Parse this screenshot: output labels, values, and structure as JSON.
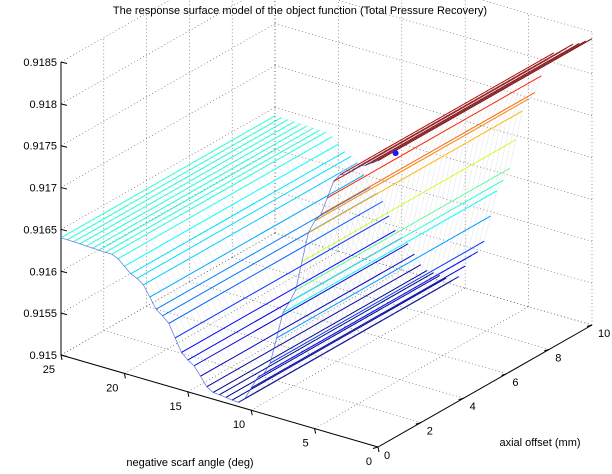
{
  "chart_data": {
    "type": "surface",
    "title": "The response surface model of the object function (Total Pressure Recovery)",
    "xlabel": "axial offset (mm)",
    "ylabel": "negative scarf angle (deg)",
    "zlabel": "",
    "xlim": [
      0,
      10
    ],
    "ylim": [
      0,
      25
    ],
    "zlim": [
      0.915,
      0.9185
    ],
    "x_ticks": [
      "0",
      "2",
      "4",
      "6",
      "8",
      "10"
    ],
    "y_ticks": [
      "0",
      "5",
      "10",
      "15",
      "20",
      "25"
    ],
    "z_ticks": [
      "0.915",
      "0.9155",
      "0.916",
      "0.9165",
      "0.917",
      "0.9175",
      "0.918",
      "0.9185"
    ],
    "grid": true,
    "colormap": "jet",
    "surface_profile": {
      "negative_scarf_angle": [
        25,
        21,
        19,
        17,
        15,
        13,
        11,
        9,
        7,
        5,
        3,
        1
      ],
      "total_pressure_recovery": [
        0.9164,
        0.91638,
        0.91618,
        0.91582,
        0.91538,
        0.91508,
        0.91505,
        0.91548,
        0.91642,
        0.91748,
        0.91812,
        0.91832
      ]
    },
    "optimum_marker": {
      "axial_offset": 1.0,
      "negative_scarf_angle": 0.3,
      "total_pressure_recovery": 0.91834
    }
  }
}
